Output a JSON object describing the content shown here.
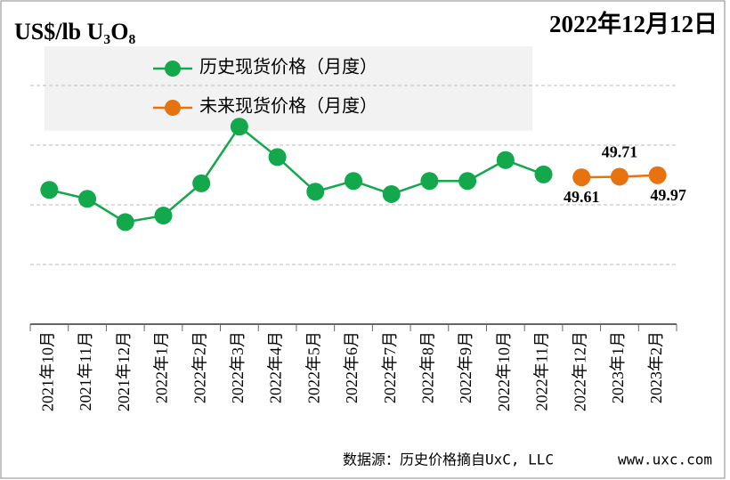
{
  "chart_data": {
    "type": "line",
    "title": "US$/lb U₃O₈",
    "date": "2022年12月12日",
    "source": "数据源：历史价格摘自UxC, LLC",
    "website": "www.uxc.com",
    "categories": [
      "2021年10月",
      "2021年11月",
      "2021年12月",
      "2022年1月",
      "2022年2月",
      "2022年3月",
      "2022年4月",
      "2022年5月",
      "2022年6月",
      "2022年7月",
      "2022年8月",
      "2022年9月",
      "2022年10月",
      "2022年11月",
      "2022年12月",
      "2023年1月",
      "2023年2月"
    ],
    "series": [
      {
        "name": "历史现货价格（月度）",
        "color": "#12a84b",
        "values": [
          47.5,
          46.0,
          42.1,
          43.2,
          48.6,
          58.1,
          53.0,
          47.2,
          49.0,
          46.8,
          49.0,
          49.0,
          52.5,
          50.1,
          null,
          null,
          null
        ]
      },
      {
        "name": "未来现货价格（月度）",
        "color": "#e6730f",
        "values": [
          null,
          null,
          null,
          null,
          null,
          null,
          null,
          null,
          null,
          null,
          null,
          null,
          null,
          null,
          49.61,
          49.71,
          49.97
        ]
      }
    ],
    "ylim": [
      25,
      75
    ],
    "yticks": [
      35,
      45,
      55,
      65
    ],
    "grid": true
  }
}
